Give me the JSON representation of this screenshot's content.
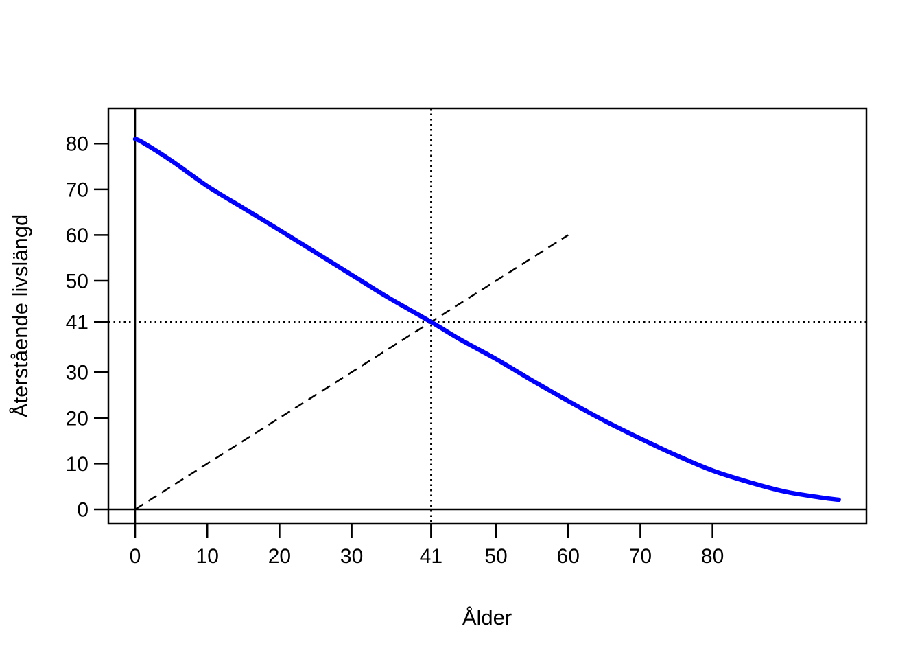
{
  "chart_data": {
    "type": "line",
    "title": "",
    "xlabel": "Ålder",
    "ylabel": "Återstående livslängd",
    "xlim": [
      -3.71,
      101.33
    ],
    "ylim": [
      -3.15,
      87.69
    ],
    "x_ticks": [
      0,
      10,
      20,
      30,
      41,
      50,
      60,
      70,
      80
    ],
    "x_tick_labels": [
      "0",
      "10",
      "20",
      "30",
      "41",
      "50",
      "60",
      "70",
      "80"
    ],
    "y_ticks": [
      0,
      10,
      20,
      30,
      41,
      50,
      60,
      70,
      80
    ],
    "y_tick_labels": [
      "0",
      "10",
      "20",
      "30",
      "41",
      "50",
      "60",
      "70",
      "80"
    ],
    "grid": false,
    "legend": "none",
    "colors": {
      "curve": "#0000FF",
      "axis": "#000000"
    },
    "series": [
      {
        "name": "remaining-life-expectancy-curve",
        "color": "#0000FF",
        "line_style": "solid",
        "line_width": 6.5,
        "x": [
          0,
          1,
          5,
          10,
          15,
          20,
          25,
          30,
          35,
          41,
          45,
          50,
          55,
          60,
          65,
          70,
          75,
          80,
          85,
          90,
          95,
          97.5
        ],
        "y": [
          81,
          80.3,
          76.3,
          70.7,
          65.9,
          61.1,
          56.2,
          51.3,
          46.4,
          41,
          37.2,
          32.9,
          28.2,
          23.7,
          19.4,
          15.5,
          11.8,
          8.5,
          6.0,
          3.9,
          2.6,
          2.1
        ]
      },
      {
        "name": "identity-line-age-equals-remaining",
        "color": "#000000",
        "line_style": "dashed",
        "line_width": 2.5,
        "x": [
          0,
          60
        ],
        "y": [
          0,
          60
        ]
      }
    ],
    "reference_lines": [
      {
        "name": "x-zero-line",
        "orientation": "vertical",
        "value": 0,
        "style": "solid",
        "color": "#000000"
      },
      {
        "name": "y-zero-line",
        "orientation": "horizontal",
        "value": 0,
        "style": "solid",
        "color": "#000000"
      },
      {
        "name": "crosshair-vertical-line",
        "orientation": "vertical",
        "value": 41,
        "style": "dotted",
        "color": "#000000"
      },
      {
        "name": "crosshair-horizontal-line",
        "orientation": "horizontal",
        "value": 41,
        "style": "dotted",
        "color": "#000000"
      }
    ],
    "intersection_point": {
      "x": 41,
      "y": 41
    }
  }
}
